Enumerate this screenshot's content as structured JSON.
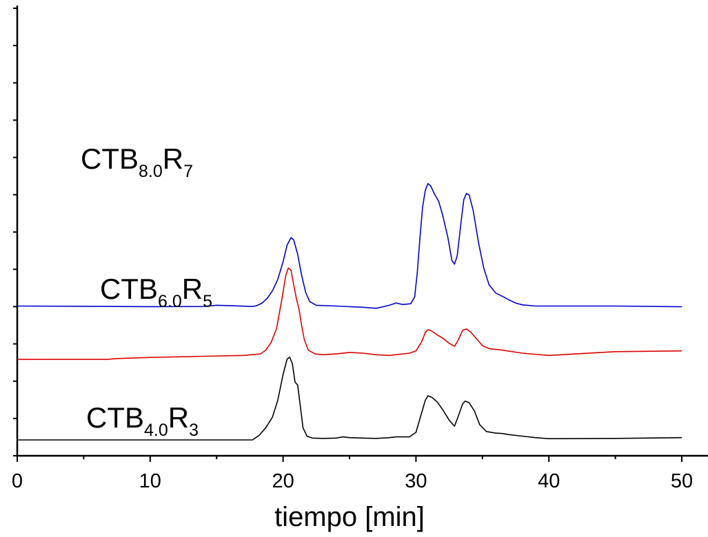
{
  "chart_data": {
    "type": "line",
    "title": "",
    "xlabel": "tiempo [min]",
    "ylabel": "",
    "xlim": [
      0,
      52
    ],
    "xticks": [
      0,
      10,
      20,
      30,
      40,
      50
    ],
    "tick_labels": [
      "0",
      "10",
      "20",
      "30",
      "40",
      "50"
    ],
    "y_ticks_count": 13,
    "grid": false,
    "y_units": "normalized offset intensity (no printed y scale)",
    "series": [
      {
        "label": {
          "main1": "CTB",
          "sub1": "8.0",
          "main2": "R",
          "sub2": "7"
        },
        "color": "#0000cc",
        "baseline": 8.8,
        "points": [
          [
            0,
            0
          ],
          [
            10,
            -0.04
          ],
          [
            14,
            -0.03
          ],
          [
            15,
            0.05
          ],
          [
            16,
            0.03
          ],
          [
            17.7,
            -0.03
          ],
          [
            18,
            0.02
          ],
          [
            18.4,
            0.18
          ],
          [
            18.8,
            0.5
          ],
          [
            19.2,
            1.0
          ],
          [
            19.6,
            1.75
          ],
          [
            20,
            2.9
          ],
          [
            20.3,
            4.0
          ],
          [
            20.6,
            4.5
          ],
          [
            20.8,
            4.35
          ],
          [
            21.1,
            3.4
          ],
          [
            21.4,
            2.0
          ],
          [
            21.7,
            0.9
          ],
          [
            22,
            0.3
          ],
          [
            22.5,
            0.05
          ],
          [
            24,
            0
          ],
          [
            26,
            -0.08
          ],
          [
            27,
            -0.15
          ],
          [
            27.5,
            -0.05
          ],
          [
            28,
            0.05
          ],
          [
            28.5,
            0.2
          ],
          [
            29,
            0.1
          ],
          [
            29.6,
            0.15
          ],
          [
            29.9,
            0.6
          ],
          [
            30.1,
            2.2
          ],
          [
            30.3,
            4.5
          ],
          [
            30.5,
            6.5
          ],
          [
            30.7,
            7.6
          ],
          [
            30.9,
            8.05
          ],
          [
            31.1,
            7.9
          ],
          [
            31.4,
            7.35
          ],
          [
            31.7,
            6.9
          ],
          [
            32,
            6.0
          ],
          [
            32.4,
            4.5
          ],
          [
            32.7,
            3.0
          ],
          [
            32.9,
            2.75
          ],
          [
            33.1,
            3.3
          ],
          [
            33.4,
            5.6
          ],
          [
            33.6,
            7.0
          ],
          [
            33.8,
            7.4
          ],
          [
            34,
            7.3
          ],
          [
            34.3,
            6.3
          ],
          [
            34.7,
            4.2
          ],
          [
            35.1,
            2.5
          ],
          [
            35.5,
            1.4
          ],
          [
            36,
            0.85
          ],
          [
            36.6,
            0.6
          ],
          [
            37,
            0.4
          ],
          [
            37.5,
            0.2
          ],
          [
            38,
            0.08
          ],
          [
            39,
            0
          ],
          [
            45,
            0
          ],
          [
            50,
            -0.05
          ]
        ]
      },
      {
        "label": {
          "main1": "CTB",
          "sub1": "6.0",
          "main2": "R",
          "sub2": "5"
        },
        "color": "#dd0000",
        "baseline": 5.3,
        "points": [
          [
            0,
            0
          ],
          [
            6.8,
            0
          ],
          [
            7.5,
            0.05
          ],
          [
            10,
            0.12
          ],
          [
            14,
            0.2
          ],
          [
            17,
            0.25
          ],
          [
            18.3,
            0.35
          ],
          [
            18.7,
            0.6
          ],
          [
            19.1,
            1.1
          ],
          [
            19.5,
            2.0
          ],
          [
            19.9,
            3.9
          ],
          [
            20.2,
            5.5
          ],
          [
            20.4,
            6.0
          ],
          [
            20.6,
            5.85
          ],
          [
            20.8,
            4.9
          ],
          [
            21,
            4.0
          ],
          [
            21.2,
            3.3
          ],
          [
            21.4,
            2.2
          ],
          [
            21.6,
            1.3
          ],
          [
            21.9,
            0.6
          ],
          [
            22.4,
            0.35
          ],
          [
            23,
            0.3
          ],
          [
            24,
            0.35
          ],
          [
            25,
            0.45
          ],
          [
            26,
            0.4
          ],
          [
            27,
            0.3
          ],
          [
            28,
            0.25
          ],
          [
            28.5,
            0.3
          ],
          [
            29.5,
            0.4
          ],
          [
            30,
            0.55
          ],
          [
            30.4,
            1.1
          ],
          [
            30.7,
            1.75
          ],
          [
            30.9,
            1.95
          ],
          [
            31.2,
            1.85
          ],
          [
            31.6,
            1.6
          ],
          [
            32,
            1.4
          ],
          [
            32.5,
            1.05
          ],
          [
            32.9,
            0.85
          ],
          [
            33.2,
            1.3
          ],
          [
            33.5,
            1.9
          ],
          [
            33.8,
            2.0
          ],
          [
            34.1,
            1.8
          ],
          [
            34.5,
            1.4
          ],
          [
            35,
            0.9
          ],
          [
            35.5,
            0.7
          ],
          [
            36.5,
            0.6
          ],
          [
            38,
            0.4
          ],
          [
            40,
            0.25
          ],
          [
            42,
            0.35
          ],
          [
            45,
            0.5
          ],
          [
            50,
            0.55
          ]
        ]
      },
      {
        "label": {
          "main1": "CTB",
          "sub1": "4.0",
          "main2": "R",
          "sub2": "3"
        },
        "color": "#000000",
        "baseline": 0,
        "points": [
          [
            0,
            0
          ],
          [
            17.7,
            0
          ],
          [
            18.2,
            0.3
          ],
          [
            18.7,
            0.8
          ],
          [
            19.2,
            1.5
          ],
          [
            19.6,
            2.6
          ],
          [
            20,
            4.3
          ],
          [
            20.3,
            5.3
          ],
          [
            20.5,
            5.45
          ],
          [
            20.7,
            5.0
          ],
          [
            20.9,
            3.8
          ],
          [
            21.1,
            3.6
          ],
          [
            21.3,
            2.2
          ],
          [
            21.5,
            0.8
          ],
          [
            21.8,
            0.25
          ],
          [
            22.2,
            0.12
          ],
          [
            23,
            0.1
          ],
          [
            24,
            0.12
          ],
          [
            24.5,
            0.2
          ],
          [
            25,
            0.15
          ],
          [
            26,
            0.12
          ],
          [
            27,
            0.1
          ],
          [
            28,
            0.15
          ],
          [
            28.5,
            0.2
          ],
          [
            29.5,
            0.2
          ],
          [
            30,
            0.5
          ],
          [
            30.4,
            1.7
          ],
          [
            30.7,
            2.6
          ],
          [
            30.9,
            2.9
          ],
          [
            31.2,
            2.8
          ],
          [
            31.6,
            2.5
          ],
          [
            32,
            2.0
          ],
          [
            32.5,
            1.3
          ],
          [
            32.9,
            0.9
          ],
          [
            33.2,
            1.6
          ],
          [
            33.5,
            2.35
          ],
          [
            33.7,
            2.55
          ],
          [
            34,
            2.45
          ],
          [
            34.4,
            1.9
          ],
          [
            34.8,
            1.0
          ],
          [
            35.3,
            0.55
          ],
          [
            36,
            0.45
          ],
          [
            36.5,
            0.42
          ],
          [
            37,
            0.35
          ],
          [
            38,
            0.25
          ],
          [
            39,
            0.15
          ],
          [
            40,
            0.08
          ],
          [
            45,
            0.1
          ],
          [
            50,
            0.15
          ]
        ]
      }
    ]
  }
}
